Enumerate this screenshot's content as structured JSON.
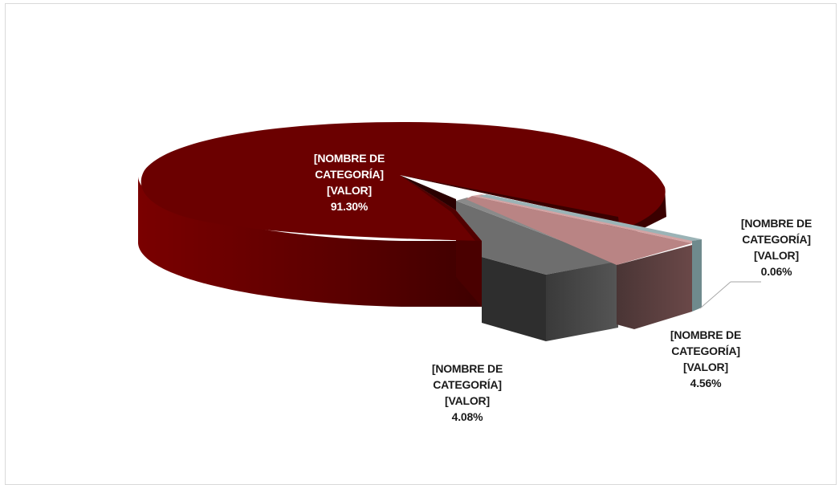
{
  "chart_data": {
    "type": "pie",
    "style": "3d-exploded",
    "slices": [
      {
        "name": "[NOMBRE DE CATEGORÍA]",
        "value_text": "[VALOR]",
        "percent": 91.3,
        "percent_label": "91.30%",
        "color": "#6b0000"
      },
      {
        "name": "[NOMBRE DE CATEGORÍA]",
        "value_text": "[VALOR]",
        "percent": 4.08,
        "percent_label": "4.08%",
        "color": "#5c5c5c"
      },
      {
        "name": "[NOMBRE DE CATEGORÍA]",
        "value_text": "[VALOR]",
        "percent": 4.56,
        "percent_label": "4.56%",
        "color": "#b47d7d"
      },
      {
        "name": "[NOMBRE DE CATEGORÍA]",
        "value_text": "[VALOR]",
        "percent": 0.06,
        "percent_label": "0.06%",
        "color": "#7d9598"
      }
    ]
  }
}
